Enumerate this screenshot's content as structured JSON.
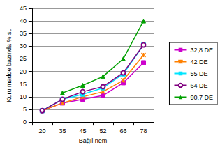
{
  "chart_data": {
    "type": "line",
    "x_label": "Bağıl nem",
    "y_label": "Kuru madde bazında % su",
    "categories": [
      "20",
      "35",
      "45",
      "52",
      "66",
      "78"
    ],
    "series": [
      {
        "name": "32,8 DE",
        "color": "#cc00cc",
        "marker": "square",
        "values": [
          4.5,
          7.5,
          9,
          10.5,
          15.5,
          23.5
        ]
      },
      {
        "name": "42 DE",
        "color": "#ff8000",
        "marker": "x",
        "values": [
          4.5,
          7.5,
          10,
          12,
          16.5,
          26.5
        ]
      },
      {
        "name": "55 DE",
        "color": "#00e5ff",
        "marker": "square",
        "values": [
          4.5,
          9,
          11,
          13.5,
          19,
          30.5
        ]
      },
      {
        "name": "64 DE",
        "color": "#800080",
        "marker": "circle",
        "values": [
          4.5,
          9,
          12,
          14,
          19.5,
          30.5
        ]
      },
      {
        "name": "90,7 DE",
        "color": "#00a000",
        "marker": "triangle",
        "values": [
          null,
          11.5,
          14.5,
          18,
          25,
          40
        ]
      }
    ],
    "ylim": [
      0,
      45
    ],
    "yticks": [
      0,
      5,
      10,
      15,
      20,
      25,
      30,
      35,
      40,
      45
    ],
    "grid": true,
    "legend": "right"
  }
}
